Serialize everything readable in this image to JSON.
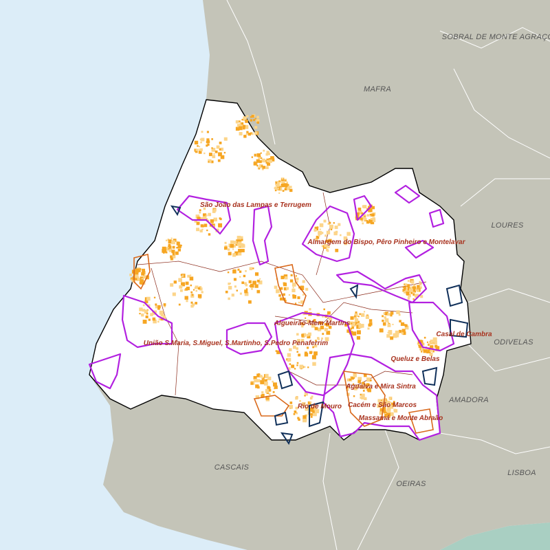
{
  "municipalities": [
    "SOBRAL DE MONTE AGRAÇO",
    "MAFRA",
    "LOURES",
    "ODIVELAS",
    "AMADORA",
    "LISBOA",
    "OEIRAS",
    "CASCAIS"
  ],
  "parishes": [
    "São João das Lampas e Terrugem",
    "Almargem do Bispo, Pêro Pinheiro e Montelavar",
    "Algueirão-Mem Martins",
    "União S.Maria, S.Miguel, S.Martinho, S.Pedro Penaferrim",
    "Casal de Cambra",
    "Queluz e Belas",
    "Agualva e Mira Sintra",
    "Rio de Mouro",
    "Cacém e São Marcos",
    "Massamá e Monte Abraão"
  ]
}
